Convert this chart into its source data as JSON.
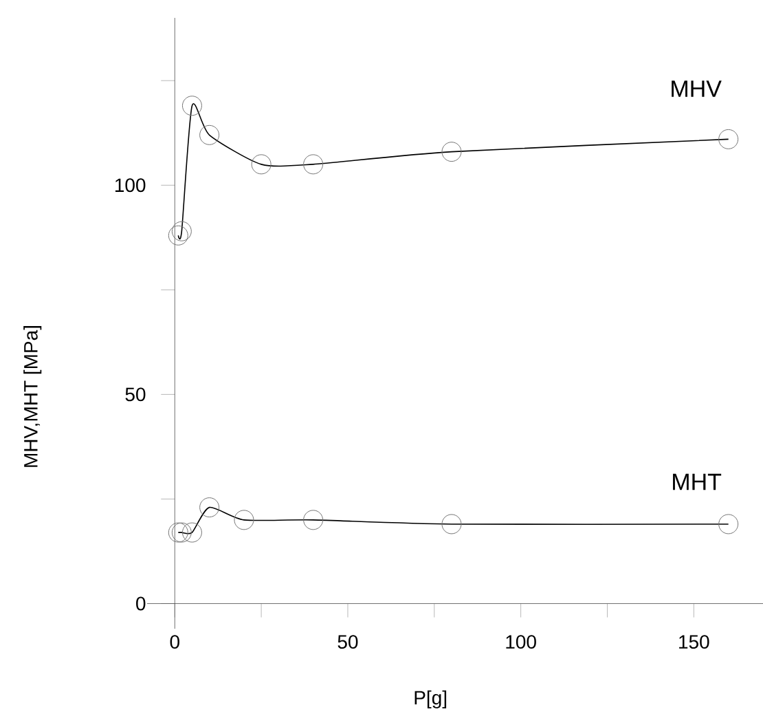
{
  "chart_data": {
    "type": "line",
    "xlabel": "P[g]",
    "ylabel": "MHV,MHT [MPa]",
    "xlim": [
      -8,
      170
    ],
    "ylim": [
      -6,
      140
    ],
    "xticks": [
      0,
      {
        "value": 25,
        "label": null
      },
      50,
      {
        "value": 75,
        "label": null
      },
      100,
      {
        "value": 125,
        "label": null
      },
      150
    ],
    "yticks": [
      0,
      {
        "value": 25,
        "label": null
      },
      50,
      {
        "value": 75,
        "label": null
      },
      100,
      {
        "value": 125,
        "label": null
      }
    ],
    "marker": "circle",
    "grid": false,
    "legend": false,
    "series": [
      {
        "name": "MHV",
        "color": "#000000",
        "x": [
          1,
          2,
          5,
          10,
          25,
          40,
          80,
          160
        ],
        "values": [
          88,
          89,
          119,
          112,
          105,
          105,
          108,
          111
        ]
      },
      {
        "name": "MHT",
        "color": "#000000",
        "x": [
          1,
          2,
          5,
          10,
          20,
          40,
          80,
          160
        ],
        "values": [
          17,
          17,
          17,
          23,
          20,
          20,
          19,
          19
        ]
      }
    ]
  }
}
